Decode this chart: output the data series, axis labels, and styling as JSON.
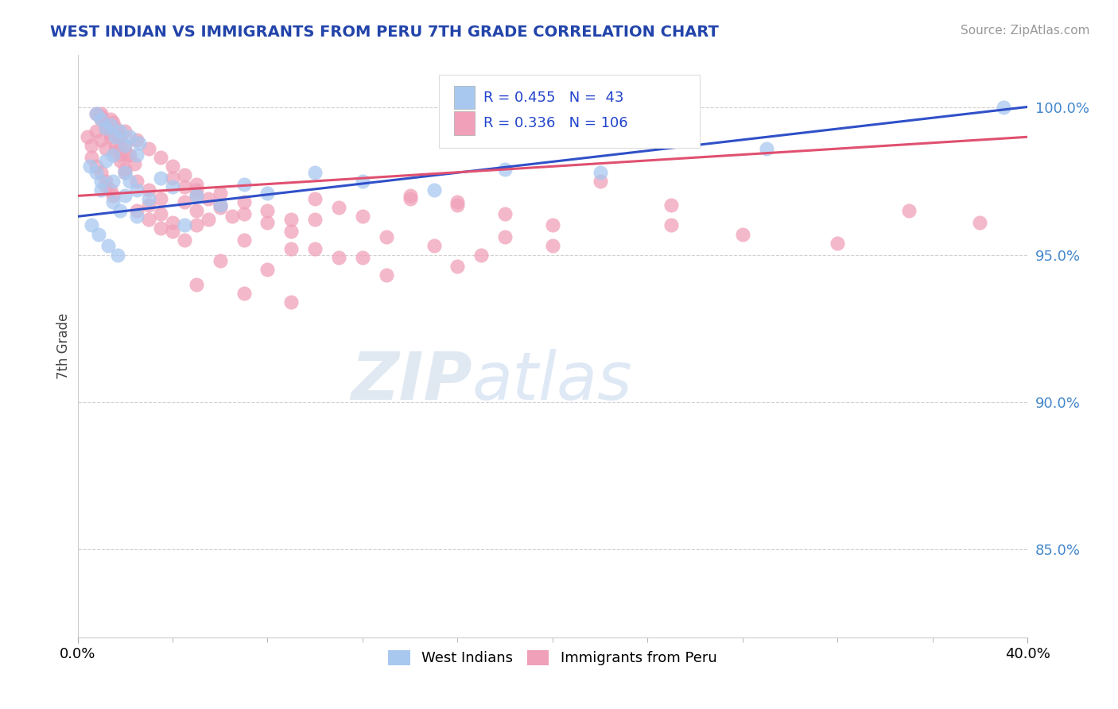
{
  "title": "WEST INDIAN VS IMMIGRANTS FROM PERU 7TH GRADE CORRELATION CHART",
  "source": "Source: ZipAtlas.com",
  "ylabel": "7th Grade",
  "xmin": 0.0,
  "xmax": 0.4,
  "ymin": 0.82,
  "ymax": 1.018,
  "ytick_values": [
    0.85,
    0.9,
    0.95,
    1.0
  ],
  "ytick_labels": [
    "85.0%",
    "90.0%",
    "95.0%",
    "100.0%"
  ],
  "blue_R": 0.455,
  "blue_N": 43,
  "pink_R": 0.336,
  "pink_N": 106,
  "blue_color": "#a8c8f0",
  "pink_color": "#f0a0b8",
  "blue_line_color": "#3050c8",
  "pink_line_color": "#e05070",
  "watermark_zip": "ZIP",
  "watermark_atlas": "atlas",
  "blue_scatter_x": [
    0.005,
    0.008,
    0.01,
    0.012,
    0.015,
    0.01,
    0.015,
    0.018,
    0.02,
    0.022,
    0.012,
    0.016,
    0.02,
    0.025,
    0.008,
    0.01,
    0.014,
    0.018,
    0.022,
    0.026,
    0.015,
    0.02,
    0.025,
    0.03,
    0.035,
    0.04,
    0.05,
    0.06,
    0.07,
    0.08,
    0.1,
    0.12,
    0.15,
    0.18,
    0.006,
    0.009,
    0.013,
    0.017,
    0.025,
    0.045,
    0.22,
    0.29,
    0.39
  ],
  "blue_scatter_y": [
    0.98,
    0.978,
    0.975,
    0.982,
    0.984,
    0.972,
    0.968,
    0.965,
    0.97,
    0.975,
    0.993,
    0.99,
    0.987,
    0.984,
    0.998,
    0.996,
    0.994,
    0.992,
    0.99,
    0.988,
    0.975,
    0.978,
    0.972,
    0.969,
    0.976,
    0.973,
    0.97,
    0.967,
    0.974,
    0.971,
    0.978,
    0.975,
    0.972,
    0.979,
    0.96,
    0.957,
    0.953,
    0.95,
    0.963,
    0.96,
    0.978,
    0.986,
    1.0
  ],
  "pink_scatter_x": [
    0.004,
    0.006,
    0.008,
    0.01,
    0.012,
    0.006,
    0.008,
    0.01,
    0.012,
    0.014,
    0.008,
    0.01,
    0.012,
    0.014,
    0.016,
    0.018,
    0.01,
    0.012,
    0.014,
    0.016,
    0.018,
    0.02,
    0.014,
    0.016,
    0.018,
    0.02,
    0.022,
    0.012,
    0.015,
    0.018,
    0.021,
    0.024,
    0.02,
    0.025,
    0.03,
    0.035,
    0.025,
    0.03,
    0.035,
    0.04,
    0.045,
    0.05,
    0.03,
    0.035,
    0.04,
    0.045,
    0.05,
    0.055,
    0.04,
    0.045,
    0.05,
    0.055,
    0.06,
    0.065,
    0.05,
    0.06,
    0.07,
    0.08,
    0.09,
    0.01,
    0.015,
    0.02,
    0.025,
    0.03,
    0.035,
    0.04,
    0.045,
    0.05,
    0.06,
    0.07,
    0.08,
    0.09,
    0.1,
    0.11,
    0.12,
    0.14,
    0.16,
    0.18,
    0.07,
    0.09,
    0.11,
    0.13,
    0.15,
    0.2,
    0.25,
    0.06,
    0.08,
    0.1,
    0.12,
    0.16,
    0.2,
    0.25,
    0.05,
    0.07,
    0.09,
    0.35,
    0.13,
    0.17,
    0.28,
    0.32,
    0.38,
    0.16,
    0.22,
    0.1,
    0.14,
    0.18
  ],
  "pink_scatter_y": [
    0.99,
    0.987,
    0.992,
    0.989,
    0.986,
    0.983,
    0.98,
    0.997,
    0.994,
    0.991,
    0.998,
    0.996,
    0.993,
    0.99,
    0.987,
    0.984,
    0.978,
    0.975,
    0.972,
    0.985,
    0.982,
    0.979,
    0.996,
    0.993,
    0.99,
    0.987,
    0.984,
    0.973,
    0.97,
    0.987,
    0.984,
    0.981,
    0.978,
    0.975,
    0.972,
    0.969,
    0.965,
    0.962,
    0.959,
    0.976,
    0.973,
    0.97,
    0.967,
    0.964,
    0.961,
    0.968,
    0.965,
    0.962,
    0.958,
    0.955,
    0.972,
    0.969,
    0.966,
    0.963,
    0.96,
    0.967,
    0.964,
    0.961,
    0.958,
    0.998,
    0.995,
    0.992,
    0.989,
    0.986,
    0.983,
    0.98,
    0.977,
    0.974,
    0.971,
    0.968,
    0.965,
    0.962,
    0.969,
    0.966,
    0.963,
    0.97,
    0.967,
    0.964,
    0.955,
    0.952,
    0.949,
    0.956,
    0.953,
    0.96,
    0.967,
    0.948,
    0.945,
    0.952,
    0.949,
    0.946,
    0.953,
    0.96,
    0.94,
    0.937,
    0.934,
    0.965,
    0.943,
    0.95,
    0.957,
    0.954,
    0.961,
    0.968,
    0.975,
    0.962,
    0.969,
    0.956
  ]
}
